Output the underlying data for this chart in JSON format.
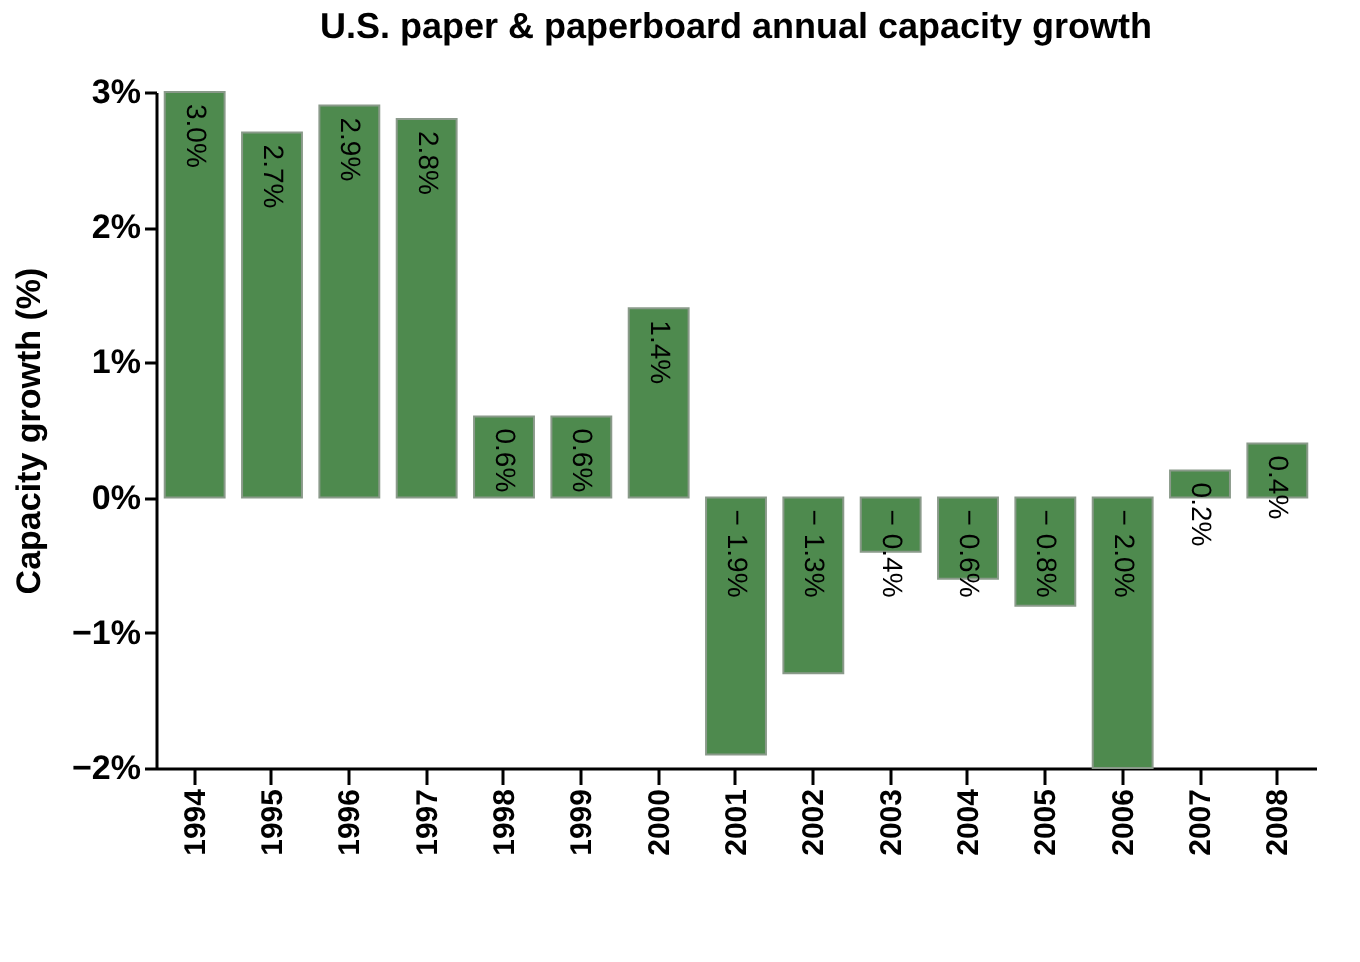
{
  "chart_data": {
    "type": "bar",
    "title": "U.S. paper & paperboard annual capacity growth",
    "ylabel": "Capacity growth (%)",
    "categories": [
      "1994",
      "1995",
      "1996",
      "1997",
      "1998",
      "1999",
      "2000",
      "2001",
      "2002",
      "2003",
      "2004",
      "2005",
      "2006",
      "2007",
      "2008"
    ],
    "values": [
      3.0,
      2.7,
      2.9,
      2.8,
      0.6,
      0.6,
      1.4,
      -1.9,
      -1.3,
      -0.4,
      -0.6,
      -0.8,
      -2.0,
      0.2,
      0.4
    ],
    "value_labels": [
      "3.0%",
      "2.7%",
      "2.9%",
      "2.8%",
      "0.6%",
      "0.6%",
      "1.4%",
      "− 1.9%",
      "− 1.3%",
      "− 0.4%",
      "− 0.6%",
      "− 0.8%",
      "− 2.0%",
      "0.2%",
      "0.4%"
    ],
    "color": "#4e8a4e",
    "ylim": [
      -2,
      3
    ],
    "yticks": [
      {
        "value": 3,
        "label": "3%"
      },
      {
        "value": 2,
        "label": "2%"
      },
      {
        "value": 1,
        "label": "1%"
      },
      {
        "value": 0,
        "label": "0%"
      },
      {
        "value": -1,
        "label": "−1%"
      },
      {
        "value": -2,
        "label": "−2%"
      }
    ],
    "grid": false
  }
}
